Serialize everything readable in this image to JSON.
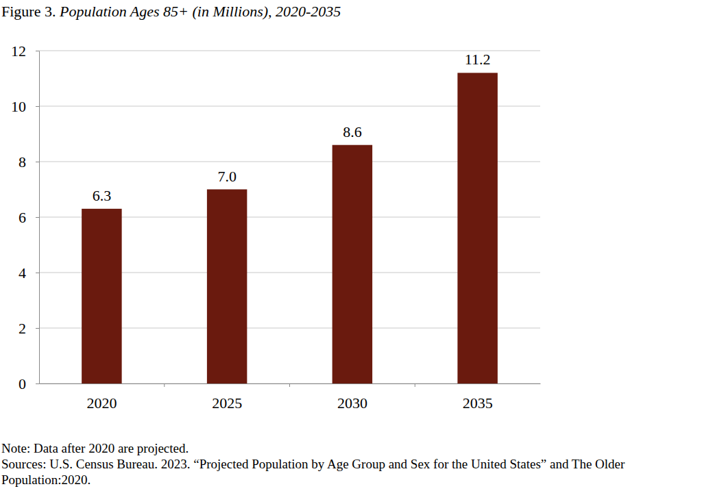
{
  "chart_data": {
    "type": "bar",
    "title": "Figure 3. Population Ages 85+ (in Millions), 2020-2035",
    "categories": [
      "2020",
      "2025",
      "2030",
      "2035"
    ],
    "values": [
      6.3,
      7.0,
      8.6,
      11.2
    ],
    "value_labels": [
      "6.3",
      "7.0",
      "8.6",
      "11.2"
    ],
    "data_labels": true,
    "color": "#6a1a0e",
    "ylim": [
      0,
      12
    ],
    "yticks": [
      0,
      2,
      4,
      6,
      8,
      10,
      12
    ],
    "grid": true,
    "annotations": [
      "Note: Data after 2020 are projected.",
      "Sources: U.S. Census Bureau. 2023. “Projected Population by Age Group and Sex for the United States” and The Older Population:2020."
    ]
  }
}
